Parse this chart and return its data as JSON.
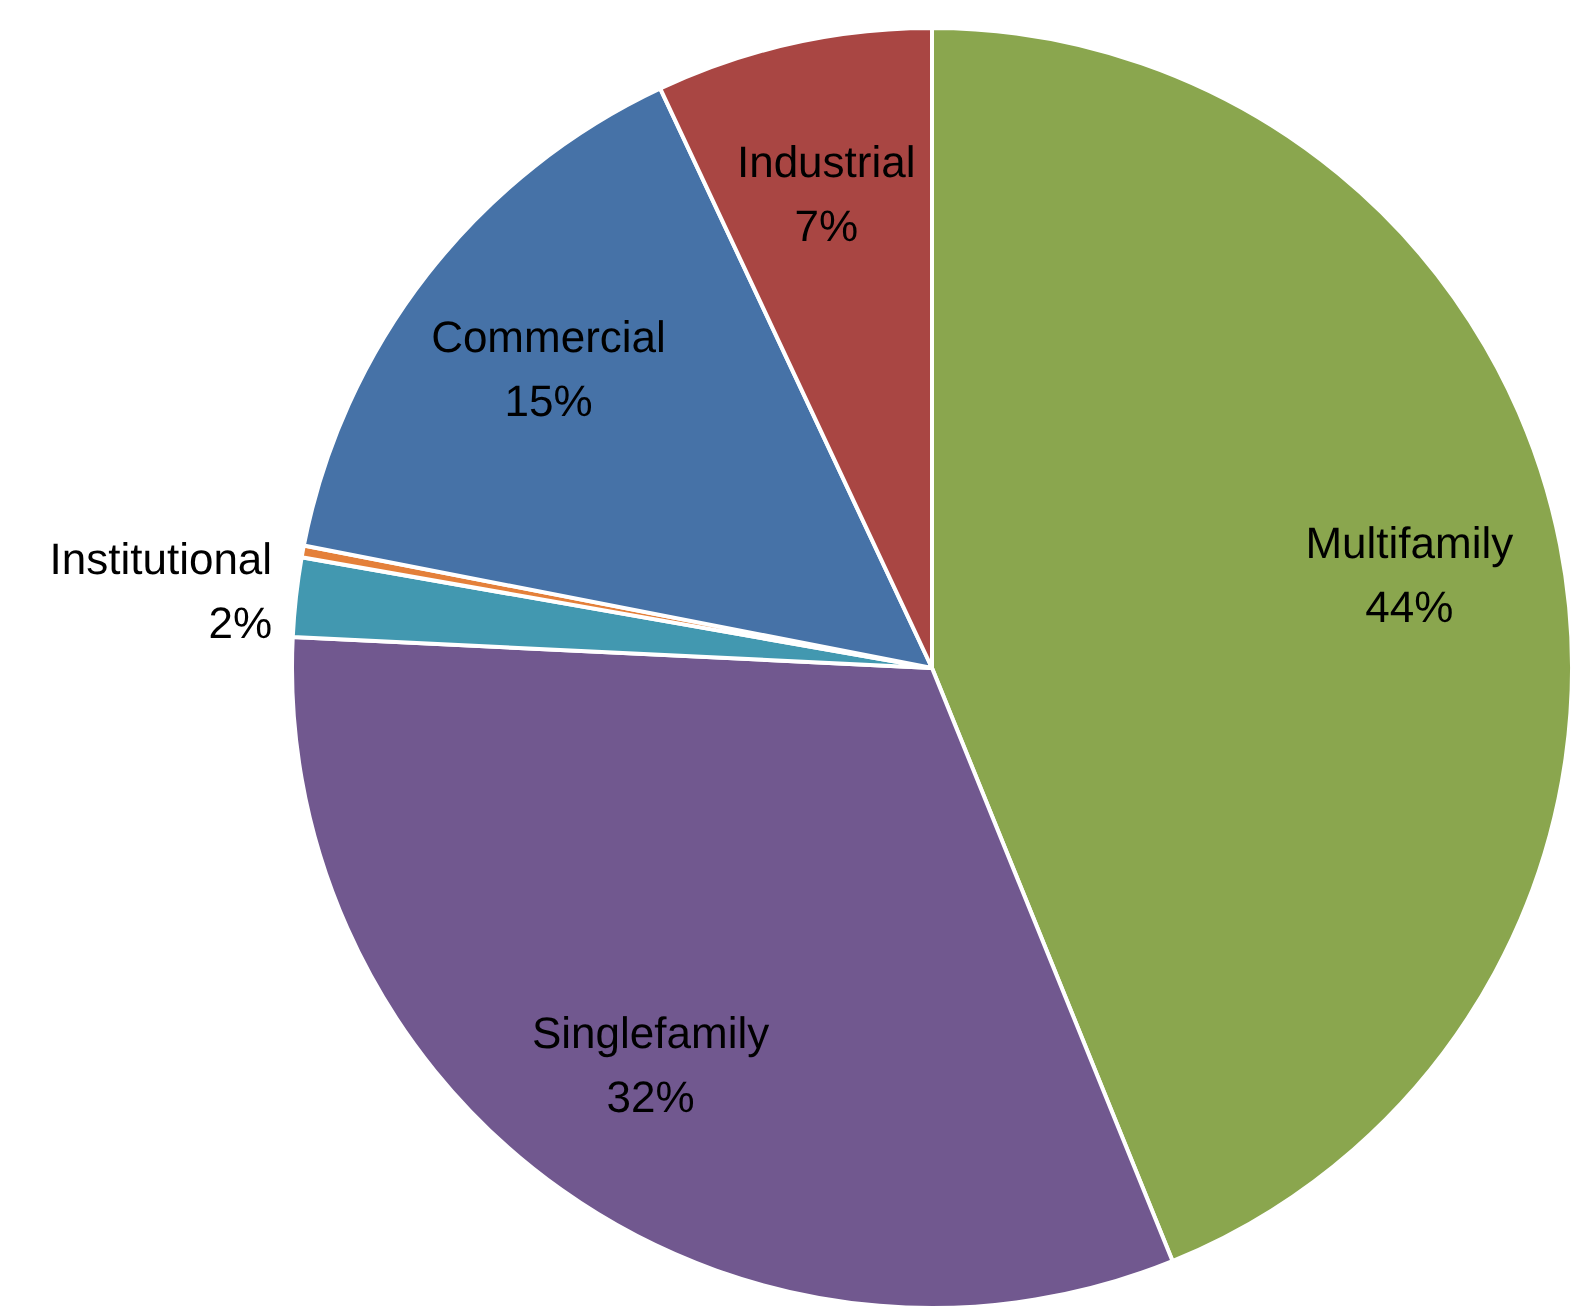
{
  "chart_data": {
    "type": "pie",
    "categories": [
      "Multifamily",
      "Singlefamily",
      "Institutional",
      null,
      "Commercial",
      "Industrial"
    ],
    "values": [
      44,
      32,
      2,
      0.3,
      15,
      7
    ],
    "value_labels": [
      "44%",
      "32%",
      "2%",
      null,
      "15%",
      "7%"
    ],
    "colors": [
      "#8aa64e",
      "#71588f",
      "#4298b0",
      "#e4803a",
      "#4672a7",
      "#a94643"
    ]
  }
}
